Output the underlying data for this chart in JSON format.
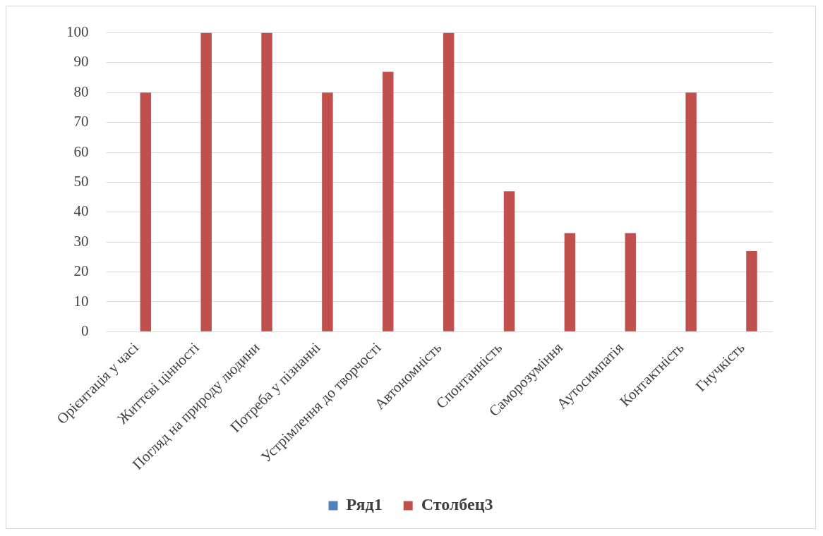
{
  "chart_data": {
    "type": "bar",
    "categories": [
      "Орієнтація у часі",
      "Життєві цінності",
      "Погляд на природу людини",
      "Потреба у пізнанні",
      "Устрімлення до творчості",
      "Автономність",
      "Спонтанність",
      "Саморозуміння",
      "Аутосимпатія",
      "Контактність",
      "Гнучкість"
    ],
    "series": [
      {
        "name": "Ряд1",
        "color": "#4f81bd",
        "values": [
          null,
          null,
          null,
          null,
          null,
          null,
          null,
          null,
          null,
          null,
          null
        ]
      },
      {
        "name": "Столбец3",
        "color": "#c0504d",
        "values": [
          80,
          100,
          100,
          80,
          87,
          100,
          47,
          33,
          33,
          80,
          27
        ]
      }
    ],
    "ylim": [
      0,
      100
    ],
    "yticks": [
      0,
      10,
      20,
      30,
      40,
      50,
      60,
      70,
      80,
      90,
      100
    ],
    "grid": "y",
    "legend": "bottom"
  }
}
